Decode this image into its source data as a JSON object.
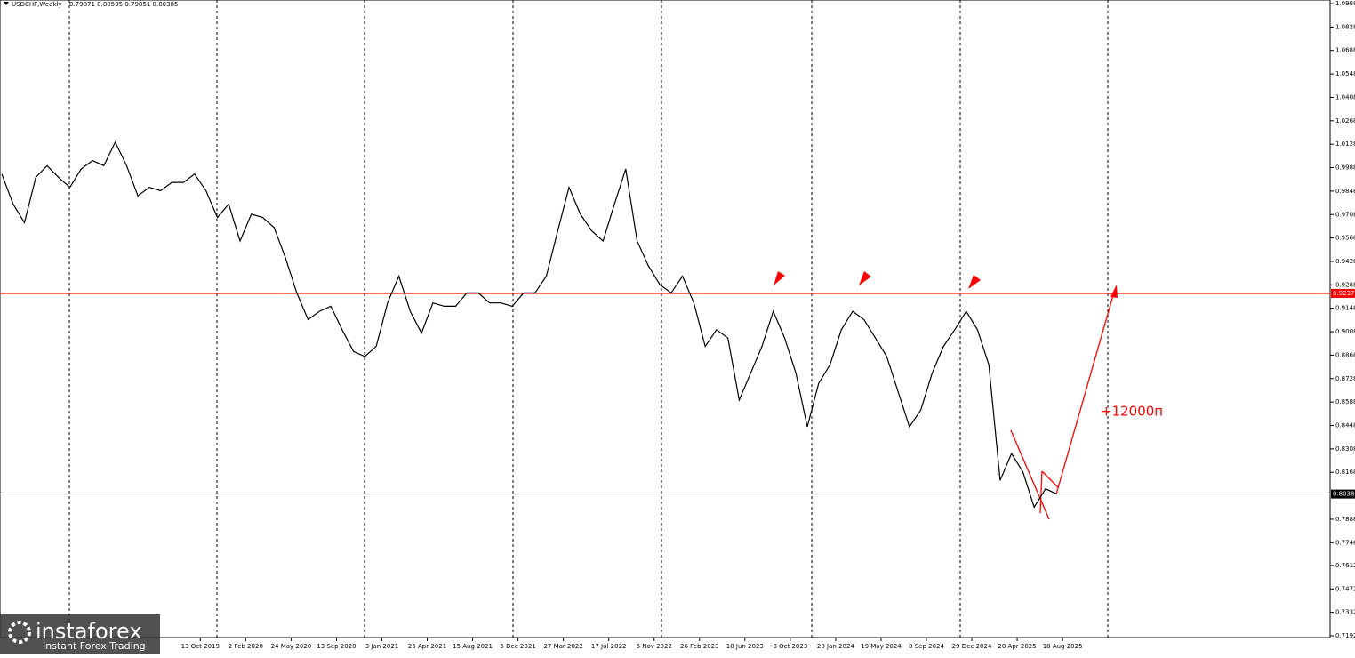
{
  "chart_data": {
    "type": "line",
    "title": "USDCHF,Weekly",
    "quote": "0.79871 0.80595 0.79851 0.80385",
    "annotation": "+12000п",
    "watermark": {
      "brand": "instaforex",
      "slogan": "Instant Forex Trading"
    },
    "x": [
      0,
      4,
      8,
      12,
      16,
      20,
      24,
      28,
      32,
      36,
      40,
      44,
      48,
      52,
      56,
      60,
      64,
      68,
      72,
      76,
      80,
      84,
      88,
      92,
      96,
      100,
      104,
      108,
      112,
      116,
      120,
      124,
      128,
      132,
      136,
      140,
      144,
      148,
      152,
      156,
      160,
      164,
      168,
      172,
      176,
      180,
      184,
      188,
      192,
      196,
      200,
      204,
      208,
      212,
      216,
      220,
      224,
      228,
      232,
      236,
      240,
      244,
      248,
      252,
      256,
      260,
      264,
      268,
      272,
      276,
      280,
      284,
      288,
      292,
      296,
      300,
      304,
      308,
      312,
      316,
      320,
      324,
      328,
      332,
      336,
      340,
      344,
      348,
      352,
      356,
      360,
      364,
      368,
      372
    ],
    "series": [
      {
        "name": "USDCHF",
        "color": "#000000",
        "values": [
          0.995,
          0.977,
          0.966,
          0.993,
          1.0,
          0.993,
          0.987,
          0.998,
          1.003,
          1.0,
          1.014,
          1.0,
          0.982,
          0.987,
          0.985,
          0.99,
          0.99,
          0.995,
          0.985,
          0.969,
          0.977,
          0.955,
          0.971,
          0.969,
          0.963,
          0.945,
          0.924,
          0.908,
          0.913,
          0.916,
          0.902,
          0.889,
          0.886,
          0.892,
          0.918,
          0.934,
          0.913,
          0.9,
          0.918,
          0.916,
          0.916,
          0.924,
          0.924,
          0.918,
          0.918,
          0.916,
          0.924,
          0.924,
          0.934,
          0.961,
          0.987,
          0.971,
          0.961,
          0.955,
          0.977,
          0.998,
          0.955,
          0.94,
          0.929,
          0.924,
          0.934,
          0.918,
          0.892,
          0.902,
          0.897,
          0.86,
          0.876,
          0.892,
          0.913,
          0.897,
          0.876,
          0.844,
          0.87,
          0.881,
          0.902,
          0.913,
          0.908,
          0.897,
          0.886,
          0.865,
          0.844,
          0.854,
          0.876,
          0.892,
          0.902,
          0.913,
          0.902,
          0.881,
          0.812,
          0.828,
          0.817,
          0.796,
          0.807,
          0.80385
        ]
      }
    ],
    "xlim": [
      0,
      468
    ],
    "xticks": [
      {
        "value": 70,
        "label": "13 Oct 2019"
      },
      {
        "value": 86,
        "label": "2 Feb 2020"
      },
      {
        "value": 102,
        "label": "24 May 2020"
      },
      {
        "value": 118,
        "label": "13 Sep 2020"
      },
      {
        "value": 134,
        "label": "3 Jan 2021"
      },
      {
        "value": 150,
        "label": "25 Apr 2021"
      },
      {
        "value": 166,
        "label": "15 Aug 2021"
      },
      {
        "value": 182,
        "label": "5 Dec 2021"
      },
      {
        "value": 198,
        "label": "27 Mar 2022"
      },
      {
        "value": 214,
        "label": "17 Jul 2022"
      },
      {
        "value": 230,
        "label": "6 Nov 2022"
      },
      {
        "value": 246,
        "label": "26 Feb 2023"
      },
      {
        "value": 262,
        "label": "18 Jun 2023"
      },
      {
        "value": 278,
        "label": "8 Oct 2023"
      },
      {
        "value": 294,
        "label": "28 Jan 2024"
      },
      {
        "value": 310,
        "label": "19 May 2024"
      },
      {
        "value": 326,
        "label": "8 Sep 2024"
      },
      {
        "value": 342,
        "label": "29 Dec 2024"
      },
      {
        "value": 358,
        "label": "20 Apr 2025"
      },
      {
        "value": 374,
        "label": "10 Aug 2025"
      }
    ],
    "ylim": [
      0.7192,
      1.0968
    ],
    "yticks": [
      {
        "value": 0.7192,
        "label": "0.71920"
      },
      {
        "value": 0.7332,
        "label": "0.73320"
      },
      {
        "value": 0.7472,
        "label": "0.74720"
      },
      {
        "value": 0.7612,
        "label": "0.76120"
      },
      {
        "value": 0.7748,
        "label": "0.77480"
      },
      {
        "value": 0.7888,
        "label": "0.78880"
      },
      {
        "value": 0.8168,
        "label": "0.81680"
      },
      {
        "value": 0.8308,
        "label": "0.83080"
      },
      {
        "value": 0.8448,
        "label": "0.84480"
      },
      {
        "value": 0.8588,
        "label": "0.85880"
      },
      {
        "value": 0.8728,
        "label": "0.87280"
      },
      {
        "value": 0.8868,
        "label": "0.88680"
      },
      {
        "value": 0.9008,
        "label": "0.90080"
      },
      {
        "value": 0.9148,
        "label": "0.91480"
      },
      {
        "value": 0.9288,
        "label": "0.92880"
      },
      {
        "value": 0.9428,
        "label": "0.94280"
      },
      {
        "value": 0.9568,
        "label": "0.95680"
      },
      {
        "value": 0.9708,
        "label": "0.97080"
      },
      {
        "value": 0.9848,
        "label": "0.98480"
      },
      {
        "value": 0.9988,
        "label": "0.99880"
      },
      {
        "value": 1.0128,
        "label": "1.01280"
      },
      {
        "value": 1.0268,
        "label": "1.02680"
      },
      {
        "value": 1.0408,
        "label": "1.04080"
      },
      {
        "value": 1.0548,
        "label": "1.05480"
      },
      {
        "value": 1.0688,
        "label": "1.06880"
      },
      {
        "value": 1.0828,
        "label": "1.08280"
      },
      {
        "value": 1.0968,
        "label": "1.09680"
      }
    ],
    "level": {
      "value": 0.9237,
      "label": "0.92370",
      "color": "#ff0000"
    },
    "current": {
      "value": 0.80385,
      "label": "0.80385",
      "color": "#000000"
    }
  }
}
